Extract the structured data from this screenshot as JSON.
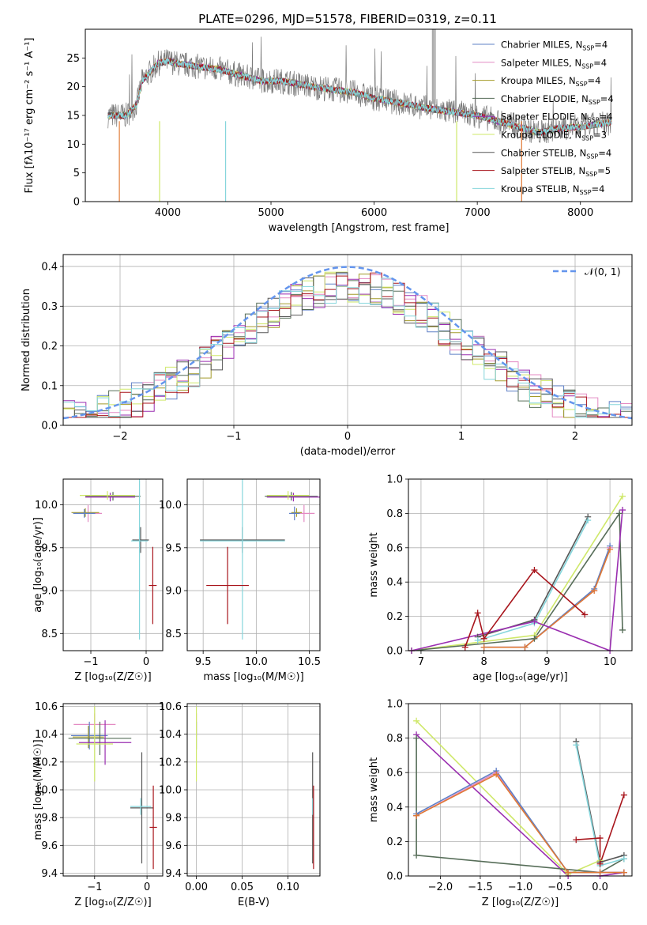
{
  "figure_title": "PLATE=0296, MJD=51578, FIBERID=0319, z=0.11",
  "colors": {
    "chabrier_miles": "#5f80c6",
    "salpeter_miles": "#e48ac3",
    "kroupa_miles": "#a49b2a",
    "chabrier_elodie": "#566d58",
    "salpeter_elodie": "#9a2eb0",
    "kroupa_elodie": "#cfe86a",
    "chabrier_stelib": "#575757",
    "salpeter_stelib": "#a8151c",
    "kroupa_stelib": "#86d6dc",
    "orange": "#e07a35",
    "gaussian": "#6495ed"
  },
  "chart_data": [
    {
      "type": "line",
      "title": "PLATE=0296, MJD=51578, FIBERID=0319, z=0.11",
      "xlabel": "wavelength [Angstrom, rest frame]",
      "ylabel": "Flux [fλ10⁻¹⁷ erg cm⁻² s⁻¹ A⁻¹]",
      "xlim": [
        3200,
        8500
      ],
      "ylim": [
        0,
        30
      ],
      "xticks": [
        "4000",
        "5000",
        "6000",
        "7000",
        "8000"
      ],
      "yticks": [
        "0",
        "5",
        "10",
        "15",
        "20",
        "25"
      ],
      "legend_position": "top-right",
      "legend": [
        {
          "label": "Chabrier MILES, N",
          "sub": "SSP",
          "n": "=4",
          "color": "#5f80c6"
        },
        {
          "label": "Salpeter MILES, N",
          "sub": "SSP",
          "n": "=4",
          "color": "#e48ac3"
        },
        {
          "label": "Kroupa MILES, N",
          "sub": "SSP",
          "n": "=4",
          "color": "#a49b2a"
        },
        {
          "label": "Chabrier ELODIE, N",
          "sub": "SSP",
          "n": "=4",
          "color": "#566d58"
        },
        {
          "label": "Salpeter ELODIE, N",
          "sub": "SSP",
          "n": "=4",
          "color": "#9a2eb0"
        },
        {
          "label": "Kroupa ELODIE, N",
          "sub": "SSP",
          "n": "=3",
          "color": "#cfe86a"
        },
        {
          "label": "Chabrier STELIB, N",
          "sub": "SSP",
          "n": "=4",
          "color": "#575757"
        },
        {
          "label": "Salpeter STELIB, N",
          "sub": "SSP",
          "n": "=5",
          "color": "#a8151c"
        },
        {
          "label": "Kroupa STELIB, N",
          "sub": "SSP",
          "n": "=4",
          "color": "#86d6dc"
        }
      ],
      "continuum": [
        [
          3420,
          15
        ],
        [
          3600,
          15
        ],
        [
          3700,
          17
        ],
        [
          3750,
          21
        ],
        [
          3800,
          22
        ],
        [
          3900,
          24
        ],
        [
          4000,
          24.5
        ],
        [
          4100,
          24
        ],
        [
          4300,
          23.5
        ],
        [
          4500,
          23
        ],
        [
          4700,
          22
        ],
        [
          4900,
          21
        ],
        [
          5100,
          21
        ],
        [
          5400,
          20
        ],
        [
          5600,
          19.5
        ],
        [
          5800,
          19
        ],
        [
          6000,
          18
        ],
        [
          6300,
          17
        ],
        [
          6600,
          16
        ],
        [
          6800,
          15.5
        ],
        [
          7000,
          15
        ],
        [
          7300,
          13.5
        ],
        [
          7600,
          12
        ],
        [
          7800,
          12.8
        ],
        [
          8000,
          13
        ],
        [
          8300,
          13.8
        ]
      ]
    },
    {
      "type": "line",
      "xlabel": "(data-model)/error",
      "ylabel": "Normed distribution",
      "xlim": [
        -2.5,
        2.5
      ],
      "ylim": [
        0,
        0.43
      ],
      "xticks": [
        "−2",
        "−1",
        "0",
        "1",
        "2"
      ],
      "yticks": [
        "0.0",
        "0.1",
        "0.2",
        "0.3",
        "0.4"
      ],
      "legend": "𝒩(0, 1)",
      "legend_position": "top-right",
      "gaussian": {
        "mean": 0,
        "sigma": 1
      }
    },
    {
      "type": "scatter",
      "xlabel": "Z [log₁₀(Z/Z☉)]",
      "ylabel": "age  [log₁₀(age/yr)]",
      "xlim": [
        -1.5,
        0.3
      ],
      "ylim": [
        8.3,
        10.3
      ],
      "xticks": [
        "−1",
        "0"
      ],
      "yticks": [
        "8.5",
        "9.0",
        "9.5",
        "10.0"
      ],
      "errorbars": [
        {
          "x": -0.6,
          "y": 10.1,
          "xerr": 0.5,
          "yerr": 0.05,
          "color": "#566d58"
        },
        {
          "x": -0.65,
          "y": 10.09,
          "xerr": 0.45,
          "yerr": 0.05,
          "color": "#9a2eb0"
        },
        {
          "x": -0.7,
          "y": 10.11,
          "xerr": 0.5,
          "yerr": 0.05,
          "color": "#cfe86a"
        },
        {
          "x": -1.05,
          "y": 9.9,
          "xerr": 0.25,
          "yerr": 0.1,
          "color": "#e48ac3"
        },
        {
          "x": -1.1,
          "y": 9.91,
          "xerr": 0.25,
          "yerr": 0.05,
          "color": "#a49b2a"
        },
        {
          "x": -1.12,
          "y": 9.9,
          "xerr": 0.2,
          "yerr": 0.05,
          "color": "#5f80c6"
        },
        {
          "x": -0.1,
          "y": 9.59,
          "xerr": 0.15,
          "yerr": 0.15,
          "color": "#575757"
        },
        {
          "x": -0.12,
          "y": 9.58,
          "xerr": 0.15,
          "yerr": 1.15,
          "color": "#86d6dc"
        },
        {
          "x": 0.12,
          "y": 9.06,
          "xerr": 0.07,
          "yerr": 0.45,
          "color": "#a8151c"
        }
      ]
    },
    {
      "type": "scatter",
      "xlabel": "mass [log₁₀(M/M☉)]",
      "xlim": [
        9.35,
        10.6
      ],
      "ylim": [
        8.3,
        10.3
      ],
      "xticks": [
        "9.5",
        "10.0",
        "10.5"
      ],
      "yticks": [
        "8.5",
        "9.0",
        "9.5",
        "10.0"
      ],
      "errorbars": [
        {
          "x": 10.33,
          "y": 10.1,
          "xerr": 0.25,
          "yerr": 0.05,
          "color": "#566d58"
        },
        {
          "x": 10.35,
          "y": 10.09,
          "xerr": 0.25,
          "yerr": 0.05,
          "color": "#9a2eb0"
        },
        {
          "x": 10.3,
          "y": 10.11,
          "xerr": 0.2,
          "yerr": 0.05,
          "color": "#cfe86a"
        },
        {
          "x": 10.45,
          "y": 9.9,
          "xerr": 0.1,
          "yerr": 0.1,
          "color": "#e48ac3"
        },
        {
          "x": 10.38,
          "y": 9.91,
          "xerr": 0.05,
          "yerr": 0.05,
          "color": "#a49b2a"
        },
        {
          "x": 10.36,
          "y": 9.9,
          "xerr": 0.05,
          "yerr": 0.08,
          "color": "#5f80c6"
        },
        {
          "x": 9.87,
          "y": 9.59,
          "xerr": 0.4,
          "yerr": 0.15,
          "color": "#575757"
        },
        {
          "x": 9.87,
          "y": 9.58,
          "xerr": 0.4,
          "yerr": 1.15,
          "color": "#86d6dc"
        },
        {
          "x": 9.73,
          "y": 9.06,
          "xerr": 0.2,
          "yerr": 0.45,
          "color": "#a8151c"
        }
      ]
    },
    {
      "type": "line",
      "xlabel": "age  [log₁₀(age/yr)]",
      "ylabel": "mass weight",
      "xlim": [
        6.8,
        10.35
      ],
      "ylim": [
        0,
        1
      ],
      "xticks": [
        "7",
        "8",
        "9",
        "10"
      ],
      "yticks": [
        "0.0",
        "0.2",
        "0.4",
        "0.6",
        "0.8",
        "1.0"
      ],
      "series": [
        {
          "color": "#575757",
          "x": [
            7.9,
            8.8,
            9.65
          ],
          "y": [
            0.08,
            0.18,
            0.78
          ]
        },
        {
          "color": "#86d6dc",
          "x": [
            7.9,
            8.8,
            9.65
          ],
          "y": [
            0.06,
            0.16,
            0.76
          ]
        },
        {
          "color": "#e48ac3",
          "x": [
            8.0,
            8.65,
            9.75,
            10.0
          ],
          "y": [
            0.02,
            0.02,
            0.35,
            0.6
          ]
        },
        {
          "color": "#5f80c6",
          "x": [
            8.0,
            8.65,
            9.75,
            10.0
          ],
          "y": [
            0.02,
            0.02,
            0.36,
            0.61
          ]
        },
        {
          "color": "#e07a35",
          "x": [
            8.0,
            8.65,
            9.75,
            10.0
          ],
          "y": [
            0.02,
            0.02,
            0.35,
            0.59
          ]
        },
        {
          "color": "#cfe86a",
          "x": [
            6.85,
            8.8,
            10.2
          ],
          "y": [
            0.0,
            0.09,
            0.9
          ]
        },
        {
          "color": "#566d58",
          "x": [
            6.85,
            8.8,
            10.15,
            10.2
          ],
          "y": [
            0.0,
            0.07,
            0.8,
            0.12
          ]
        },
        {
          "color": "#9a2eb0",
          "x": [
            6.85,
            8.8,
            10.0,
            10.2
          ],
          "y": [
            0.0,
            0.17,
            0.0,
            0.82
          ]
        },
        {
          "color": "#a8151c",
          "x": [
            7.7,
            7.9,
            8.0,
            8.8,
            9.6
          ],
          "y": [
            0.02,
            0.22,
            0.07,
            0.47,
            0.21
          ]
        }
      ]
    },
    {
      "type": "scatter",
      "xlabel": "Z [log₁₀(Z/Z☉)]",
      "ylabel": "mass [log₁₀(M/M☉)]",
      "xlim": [
        -1.6,
        0.3
      ],
      "ylim": [
        9.38,
        10.62
      ],
      "xticks": [
        "−1",
        "0"
      ],
      "yticks": [
        "9.4",
        "9.6",
        "9.8",
        "10.0",
        "10.2",
        "10.4",
        "10.6"
      ],
      "errorbars": [
        {
          "x": -1.0,
          "y": 10.47,
          "xerr": 0.4,
          "yerr": 0.08,
          "color": "#e48ac3"
        },
        {
          "x": -1.1,
          "y": 10.39,
          "xerr": 0.35,
          "yerr": 0.1,
          "color": "#5f80c6"
        },
        {
          "x": -1.12,
          "y": 10.38,
          "xerr": 0.3,
          "yerr": 0.08,
          "color": "#a49b2a"
        },
        {
          "x": -0.9,
          "y": 10.37,
          "xerr": 0.6,
          "yerr": 0.12,
          "color": "#566d58"
        },
        {
          "x": -0.8,
          "y": 10.34,
          "xerr": 0.5,
          "yerr": 0.16,
          "color": "#9a2eb0"
        },
        {
          "x": -1.0,
          "y": 10.33,
          "xerr": 0.35,
          "yerr": 0.27,
          "color": "#cfe86a"
        },
        {
          "x": -0.1,
          "y": 9.87,
          "xerr": 0.22,
          "yerr": 0.4,
          "color": "#575757"
        },
        {
          "x": -0.12,
          "y": 9.88,
          "xerr": 0.2,
          "yerr": 0.06,
          "color": "#86d6dc"
        },
        {
          "x": 0.12,
          "y": 9.73,
          "xerr": 0.07,
          "yerr": 0.3,
          "color": "#a8151c"
        }
      ]
    },
    {
      "type": "scatter",
      "xlabel": "E(B-V)",
      "xlim": [
        -0.01,
        0.135
      ],
      "ylim": [
        9.38,
        10.62
      ],
      "xticks": [
        "0.00",
        "0.05",
        "0.10"
      ],
      "yticks": [
        "9.4",
        "9.6",
        "9.8",
        "10.0",
        "10.2",
        "10.4",
        "10.6"
      ],
      "errorbars": [
        {
          "x": 0.0,
          "y": 10.47,
          "xerr": 0,
          "yerr": 0.08,
          "color": "#e48ac3"
        },
        {
          "x": 0.0,
          "y": 10.39,
          "xerr": 0,
          "yerr": 0.1,
          "color": "#5f80c6"
        },
        {
          "x": 0.0,
          "y": 10.33,
          "xerr": 0,
          "yerr": 0.27,
          "color": "#cfe86a"
        },
        {
          "x": 0.127,
          "y": 9.87,
          "xerr": 0,
          "yerr": 0.4,
          "color": "#575757"
        },
        {
          "x": 0.127,
          "y": 9.88,
          "xerr": 0,
          "yerr": 0.06,
          "color": "#86d6dc"
        },
        {
          "x": 0.128,
          "y": 9.73,
          "xerr": 0,
          "yerr": 0.3,
          "color": "#a8151c"
        }
      ]
    },
    {
      "type": "line",
      "xlabel": "Z [log₁₀(Z/Z☉)]",
      "ylabel": "mass weight",
      "xlim": [
        -2.4,
        0.4
      ],
      "ylim": [
        0,
        1
      ],
      "xticks": [
        "−2.0",
        "−1.5",
        "−1.0",
        "−0.5",
        "0.0"
      ],
      "yticks": [
        "0.0",
        "0.2",
        "0.4",
        "0.6",
        "0.8",
        "1.0"
      ],
      "series": [
        {
          "color": "#cfe86a",
          "x": [
            -2.3,
            -0.4,
            0.0
          ],
          "y": [
            0.9,
            0.01,
            0.09
          ]
        },
        {
          "color": "#9a2eb0",
          "x": [
            -2.3,
            -0.4,
            0.0,
            0.3
          ],
          "y": [
            0.82,
            0.0,
            0.0,
            0.02
          ]
        },
        {
          "color": "#566d58",
          "x": [
            -2.3,
            -2.3,
            0.0,
            0.3
          ],
          "y": [
            0.8,
            0.12,
            0.02,
            0.1
          ]
        },
        {
          "color": "#e48ac3",
          "x": [
            -2.3,
            -1.3,
            -0.4,
            0.0,
            0.3
          ],
          "y": [
            0.35,
            0.6,
            0.02,
            0.02,
            0.02
          ]
        },
        {
          "color": "#5f80c6",
          "x": [
            -2.3,
            -1.3,
            -0.4,
            0.0,
            0.3
          ],
          "y": [
            0.36,
            0.61,
            0.02,
            0.02,
            0.02
          ]
        },
        {
          "color": "#e07a35",
          "x": [
            -2.3,
            -1.3,
            -0.4,
            0.0,
            0.3
          ],
          "y": [
            0.35,
            0.59,
            0.02,
            0.02,
            0.02
          ]
        },
        {
          "color": "#575757",
          "x": [
            -0.3,
            0.0,
            0.3
          ],
          "y": [
            0.78,
            0.08,
            0.12
          ]
        },
        {
          "color": "#86d6dc",
          "x": [
            -0.3,
            0.0,
            0.3
          ],
          "y": [
            0.76,
            0.06,
            0.1
          ]
        },
        {
          "color": "#a8151c",
          "x": [
            -0.3,
            0.0,
            0.0,
            0.3
          ],
          "y": [
            0.21,
            0.22,
            0.07,
            0.47
          ]
        }
      ]
    }
  ]
}
